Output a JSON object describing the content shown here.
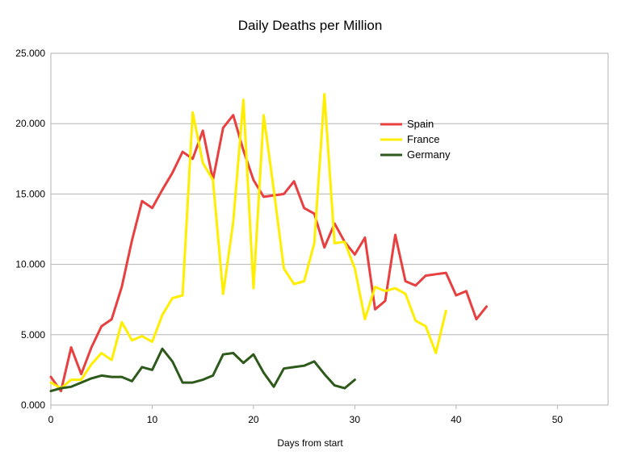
{
  "chart_data": {
    "type": "line",
    "title": "Daily Deaths per Million",
    "xlabel": "Days from start",
    "ylabel": "",
    "xlim": [
      0,
      55
    ],
    "ylim": [
      0,
      25
    ],
    "x_ticks": [
      0,
      10,
      20,
      30,
      40,
      50
    ],
    "x_tick_labels": [
      "0",
      "10",
      "20",
      "30",
      "40",
      "50"
    ],
    "y_ticks": [
      0,
      5,
      10,
      15,
      20,
      25
    ],
    "y_tick_labels": [
      "0.000",
      "5.000",
      "10.000",
      "15.000",
      "20.000",
      "25.000"
    ],
    "grid": "horizontal",
    "legend_position": "right-center",
    "series": [
      {
        "name": "Spain",
        "color": "#e84040",
        "x": [
          0,
          1,
          2,
          3,
          4,
          5,
          6,
          7,
          8,
          9,
          10,
          11,
          12,
          13,
          14,
          15,
          16,
          17,
          18,
          19,
          20,
          21,
          22,
          23,
          24,
          25,
          26,
          27,
          28,
          29,
          30,
          31,
          32,
          33,
          34,
          35,
          36,
          37,
          38,
          39,
          40,
          41,
          42,
          43
        ],
        "y": [
          2.0,
          1.0,
          4.1,
          2.2,
          4.1,
          5.6,
          6.1,
          8.4,
          11.7,
          14.5,
          14.0,
          15.3,
          16.5,
          18.0,
          17.5,
          19.5,
          16.0,
          19.7,
          20.6,
          18.1,
          16.0,
          14.8,
          14.9,
          15.0,
          15.9,
          14.0,
          13.6,
          11.2,
          12.9,
          11.6,
          10.7,
          11.9,
          6.8,
          7.4,
          12.1,
          8.8,
          8.5,
          9.2,
          9.3,
          9.4,
          7.8,
          8.1,
          6.1,
          7.0
        ]
      },
      {
        "name": "France",
        "color": "#ffee00",
        "x": [
          0,
          1,
          2,
          3,
          4,
          5,
          6,
          7,
          8,
          9,
          10,
          11,
          12,
          13,
          14,
          15,
          16,
          17,
          18,
          19,
          20,
          21,
          22,
          23,
          24,
          25,
          26,
          27,
          28,
          29,
          30,
          31,
          32,
          33,
          34,
          35,
          36,
          37,
          38,
          39
        ],
        "y": [
          1.6,
          1.2,
          1.8,
          1.8,
          2.9,
          3.7,
          3.2,
          5.9,
          4.6,
          4.9,
          4.5,
          6.4,
          7.6,
          7.8,
          20.8,
          17.2,
          16.0,
          7.9,
          13.0,
          21.7,
          8.3,
          20.6,
          15.3,
          9.7,
          8.6,
          8.8,
          11.5,
          22.1,
          11.5,
          11.6,
          9.7,
          6.1,
          8.4,
          8.1,
          8.3,
          7.9,
          6.0,
          5.6,
          3.7,
          6.7
        ]
      },
      {
        "name": "Germany",
        "color": "#2d5a1b",
        "x": [
          0,
          1,
          2,
          3,
          4,
          5,
          6,
          7,
          8,
          9,
          10,
          11,
          12,
          13,
          14,
          15,
          16,
          17,
          18,
          19,
          20,
          21,
          22,
          23,
          24,
          25,
          26,
          27,
          28,
          29,
          30
        ],
        "y": [
          1.0,
          1.2,
          1.3,
          1.6,
          1.9,
          2.1,
          2.0,
          2.0,
          1.7,
          2.7,
          2.5,
          4.0,
          3.1,
          1.6,
          1.6,
          1.8,
          2.1,
          3.6,
          3.7,
          3.0,
          3.6,
          2.3,
          1.3,
          2.6,
          2.7,
          2.8,
          3.1,
          2.2,
          1.4,
          1.2,
          1.8
        ]
      }
    ]
  }
}
